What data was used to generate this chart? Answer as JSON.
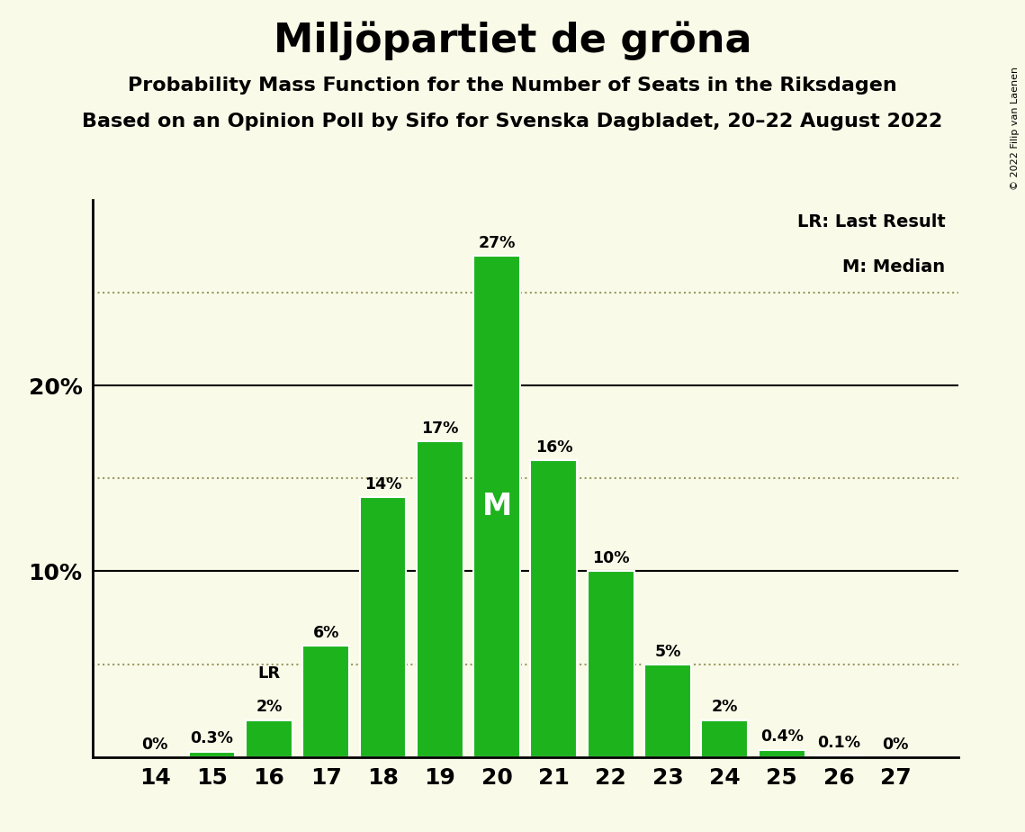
{
  "title": "Miljöpartiet de gröna",
  "subtitle1": "Probability Mass Function for the Number of Seats in the Riksdagen",
  "subtitle2": "Based on an Opinion Poll by Sifo for Svenska Dagbladet, 20–22 August 2022",
  "copyright": "© 2022 Filip van Laenen",
  "categories": [
    14,
    15,
    16,
    17,
    18,
    19,
    20,
    21,
    22,
    23,
    24,
    25,
    26,
    27
  ],
  "values": [
    0.0,
    0.3,
    2.0,
    6.0,
    14.0,
    17.0,
    27.0,
    16.0,
    10.0,
    5.0,
    2.0,
    0.4,
    0.1,
    0.0
  ],
  "labels": [
    "0%",
    "0.3%",
    "2%",
    "6%",
    "14%",
    "17%",
    "27%",
    "16%",
    "10%",
    "5%",
    "2%",
    "0.4%",
    "0.1%",
    "0%"
  ],
  "bar_color": "#1db31d",
  "background_color": "#fafae8",
  "title_fontsize": 32,
  "subtitle_fontsize": 16,
  "ylim": [
    0,
    30
  ],
  "legend_text1": "LR: Last Result",
  "legend_text2": "M: Median",
  "lr_bar": 16,
  "median_bar": 20,
  "dotted_lines": [
    5.0,
    15.0,
    25.0
  ],
  "solid_lines": [
    10.0,
    20.0
  ]
}
